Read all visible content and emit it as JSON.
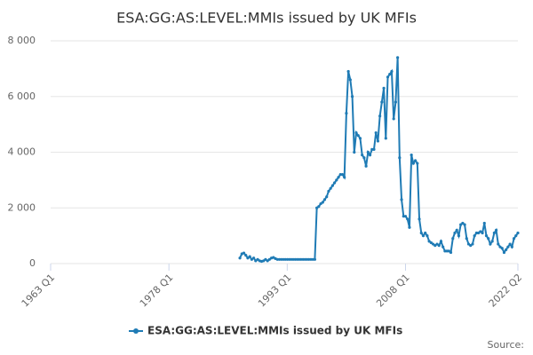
{
  "chart_data": {
    "type": "line",
    "title": "ESA:GG:AS:LEVEL:MMIs issued by UK MFIs",
    "source": "Source:",
    "x": [
      1987,
      1987.25,
      1987.5,
      1987.75,
      1988,
      1988.25,
      1988.5,
      1988.75,
      1989,
      1989.25,
      1989.5,
      1989.75,
      1990,
      1990.25,
      1990.5,
      1990.75,
      1991,
      1991.25,
      1991.5,
      1991.75,
      1992,
      1992.25,
      1992.5,
      1992.75,
      1993,
      1993.25,
      1993.5,
      1993.75,
      1994,
      1994.25,
      1994.5,
      1994.75,
      1995,
      1995.25,
      1995.5,
      1995.75,
      1996,
      1996.25,
      1996.5,
      1996.75,
      1997,
      1997.25,
      1997.5,
      1997.75,
      1998,
      1998.25,
      1998.5,
      1998.75,
      1999,
      1999.25,
      1999.5,
      1999.75,
      2000,
      2000.25,
      2000.5,
      2000.75,
      2001,
      2001.25,
      2001.5,
      2001.75,
      2002,
      2002.25,
      2002.5,
      2002.75,
      2003,
      2003.25,
      2003.5,
      2003.75,
      2004,
      2004.25,
      2004.5,
      2004.75,
      2005,
      2005.25,
      2005.5,
      2005.75,
      2006,
      2006.25,
      2006.5,
      2006.75,
      2007,
      2007.25,
      2007.5,
      2007.75,
      2008,
      2008.25,
      2008.5,
      2008.75,
      2009,
      2009.25,
      2009.5,
      2009.75,
      2010,
      2010.25,
      2010.5,
      2010.75,
      2011,
      2011.25,
      2011.5,
      2011.75,
      2012,
      2012.25,
      2012.5,
      2012.75,
      2013,
      2013.25,
      2013.5,
      2013.75,
      2014,
      2014.25,
      2014.5,
      2014.75,
      2015,
      2015.25,
      2015.5,
      2015.75,
      2016,
      2016.25,
      2016.5,
      2016.75,
      2017,
      2017.25,
      2017.5,
      2017.75,
      2018,
      2018.25,
      2018.5,
      2018.75,
      2019,
      2019.25,
      2019.5,
      2019.75,
      2020,
      2020.25,
      2020.5,
      2020.75,
      2021,
      2021.25,
      2021.5,
      2021.75,
      2022,
      2022.25
    ],
    "series": [
      {
        "name": "ESA:GG:AS:LEVEL:MMIs issued by UK MFIs",
        "color": "#1f7bb5",
        "values": [
          200,
          350,
          380,
          300,
          200,
          250,
          150,
          200,
          100,
          150,
          100,
          80,
          100,
          150,
          100,
          150,
          200,
          220,
          180,
          150,
          150,
          150,
          150,
          150,
          150,
          150,
          150,
          150,
          150,
          150,
          150,
          150,
          150,
          150,
          150,
          150,
          150,
          150,
          150,
          2000,
          2050,
          2150,
          2200,
          2300,
          2400,
          2600,
          2700,
          2800,
          2900,
          3000,
          3100,
          3200,
          3200,
          3100,
          5400,
          6900,
          6600,
          6000,
          4000,
          4700,
          4600,
          4500,
          3900,
          3800,
          3500,
          4000,
          3900,
          4100,
          4100,
          4700,
          4400,
          5300,
          5800,
          6300,
          4500,
          6700,
          6800,
          6900,
          5200,
          5800,
          7400,
          3800,
          2300,
          1700,
          1700,
          1600,
          1300,
          3900,
          3600,
          3700,
          3600,
          1600,
          1100,
          1000,
          1100,
          1000,
          800,
          750,
          700,
          650,
          700,
          650,
          800,
          600,
          450,
          450,
          450,
          400,
          900,
          1100,
          1200,
          1000,
          1400,
          1450,
          1400,
          900,
          700,
          650,
          700,
          1000,
          1100,
          1100,
          1150,
          1100,
          1450,
          1000,
          900,
          700,
          800,
          1100,
          1200,
          700,
          600,
          550,
          400,
          500,
          600,
          700,
          600,
          900,
          1000,
          1100
        ]
      }
    ],
    "xlim": [
      1963,
      2022.25
    ],
    "xticks": [
      {
        "value": 1963,
        "label": "1963 Q1"
      },
      {
        "value": 1978,
        "label": "1978 Q1"
      },
      {
        "value": 1993,
        "label": "1993 Q1"
      },
      {
        "value": 2008,
        "label": "2008 Q1"
      },
      {
        "value": 2022.25,
        "label": "2022 Q2"
      }
    ],
    "ylim": [
      0,
      8000
    ],
    "yticks": [
      0,
      {
        "value": 2000,
        "label": "2 000"
      },
      {
        "value": 4000,
        "label": "4 000"
      },
      {
        "value": 6000,
        "label": "6 000"
      },
      {
        "value": 8000,
        "label": "8 000"
      }
    ],
    "grid": true
  }
}
